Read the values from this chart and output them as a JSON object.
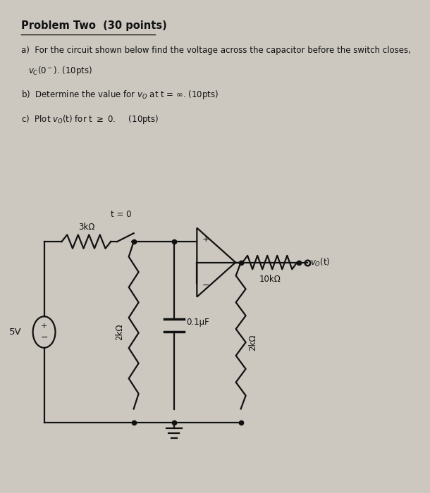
{
  "bg_color": "#ccc8c0",
  "paper_color": "#edeae4",
  "text_color": "#111111",
  "circuit_color": "#111111",
  "title": "Problem Two  (30 points)",
  "part_a_1": "a)  For the circuit shown below find the voltage across the capacitor before the switch closes,",
  "part_a_2": "     v_C(0^-). (10pts)",
  "part_b": "b)  Determine the value for v_O at t = inf. (10pts)",
  "part_c": "c)  Plot v_O(t) for t >= 0.     (10pts)",
  "res3k_label": "3kΩ",
  "res2k_label_left": "2kΩ",
  "cap_label": "0.1μF",
  "res10k_label": "10kΩ",
  "res2k_label_right": "2kΩ",
  "switch_label": "t = 0",
  "vs_label": "5V",
  "vo_label": "v_O(t)",
  "opamp_plus": "+",
  "opamp_minus": "-"
}
